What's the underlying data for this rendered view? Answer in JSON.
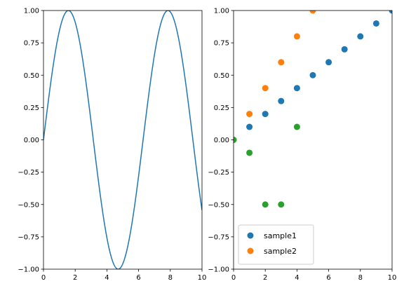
{
  "chart_data": [
    {
      "type": "line",
      "title": "",
      "xlabel": "",
      "ylabel": "",
      "xlim": [
        0,
        10
      ],
      "ylim": [
        -1,
        1
      ],
      "grid": false,
      "x_ticks": [
        0,
        2,
        4,
        6,
        8,
        10
      ],
      "y_ticks": [
        -1.0,
        -0.75,
        -0.5,
        -0.25,
        0.0,
        0.25,
        0.5,
        0.75,
        1.0
      ],
      "x_tick_labels": [
        "0",
        "2",
        "4",
        "6",
        "8",
        "10"
      ],
      "y_tick_labels": [
        "−1.00",
        "−0.75",
        "−0.50",
        "−0.25",
        "0.00",
        "0.25",
        "0.50",
        "0.75",
        "1.00"
      ],
      "series": [
        {
          "function": "sin(x)",
          "color": "#1f77b4",
          "x": [
            0,
            0.5,
            1,
            1.5708,
            2,
            2.5,
            3,
            3.5,
            4,
            4.7124,
            5,
            5.5,
            6,
            6.5,
            7,
            7.854,
            8,
            8.5,
            9,
            9.5,
            10
          ],
          "y": [
            0,
            0.479,
            0.841,
            1.0,
            0.909,
            0.598,
            0.141,
            -0.351,
            -0.757,
            -1.0,
            -0.959,
            -0.706,
            -0.279,
            0.215,
            0.657,
            1.0,
            0.989,
            0.798,
            0.412,
            -0.075,
            -0.544
          ]
        }
      ]
    },
    {
      "type": "scatter",
      "title": "",
      "xlabel": "",
      "ylabel": "",
      "xlim": [
        0,
        10
      ],
      "ylim": [
        -1,
        1
      ],
      "grid": false,
      "legend_position": "lower-left",
      "x_ticks": [
        0,
        2,
        4,
        6,
        8,
        10
      ],
      "y_ticks": [
        -1.0,
        -0.75,
        -0.5,
        -0.25,
        0.0,
        0.25,
        0.5,
        0.75,
        1.0
      ],
      "x_tick_labels": [
        "0",
        "2",
        "4",
        "6",
        "8",
        "10"
      ],
      "y_tick_labels": [
        "−1.00",
        "−0.75",
        "−0.50",
        "−0.25",
        "0.00",
        "0.25",
        "0.50",
        "0.75",
        "1.00"
      ],
      "series": [
        {
          "name": "sample1",
          "color": "#1f77b4",
          "x": [
            0,
            1,
            2,
            3,
            4,
            5,
            6,
            7,
            8,
            9,
            10
          ],
          "y": [
            0.0,
            0.1,
            0.2,
            0.3,
            0.4,
            0.5,
            0.6,
            0.7,
            0.8,
            0.9,
            1.0
          ]
        },
        {
          "name": "sample2",
          "color": "#ff7f0e",
          "x": [
            0,
            1,
            2,
            3,
            4,
            5
          ],
          "y": [
            0.0,
            0.2,
            0.4,
            0.6,
            0.8,
            1.0
          ]
        },
        {
          "color": "#2ca02c",
          "x": [
            0,
            1,
            2,
            3,
            4
          ],
          "y": [
            0.0,
            -0.1,
            -0.5,
            -0.5,
            0.1
          ]
        }
      ]
    }
  ]
}
